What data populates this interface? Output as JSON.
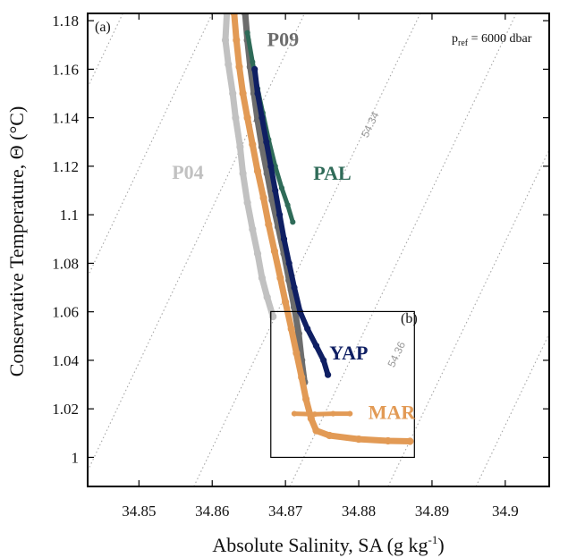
{
  "chart_data": {
    "type": "scatter",
    "panel_tag": "(a)",
    "inset_tag": "(b)",
    "pref": {
      "prefix": "p",
      "subscript": "ref",
      "suffix": " = 6000 dbar"
    },
    "xlabel": {
      "main": "Absolute Salinity, SA (g kg",
      "superscript": "-1",
      "close": ")"
    },
    "ylabel": "Conservative Temperature, Θ (°C)",
    "xlim": [
      34.843,
      34.906
    ],
    "ylim": [
      0.988,
      1.183
    ],
    "xticks": [
      34.85,
      34.86,
      34.87,
      34.88,
      34.89,
      34.9
    ],
    "xtick_labels": [
      "34.85",
      "34.86",
      "34.87",
      "34.88",
      "34.89",
      "34.9"
    ],
    "yticks": [
      1.0,
      1.02,
      1.04,
      1.06,
      1.08,
      1.1,
      1.12,
      1.14,
      1.16,
      1.18
    ],
    "ytick_labels": [
      "1",
      "1.02",
      "1.04",
      "1.06",
      "1.08",
      "1.1",
      "1.12",
      "1.14",
      "1.16",
      "1.18"
    ],
    "grid": false,
    "isopycnals": {
      "style": "dotted",
      "color": "#a6a6a6",
      "lines": [
        {
          "label": "",
          "points": [
            [
              34.843,
              0.9944
            ],
            [
              34.8726,
              1.183
            ]
          ]
        },
        {
          "label": "",
          "points": [
            [
              34.843,
              1.0745
            ],
            [
              34.86,
              1.183
            ]
          ]
        },
        {
          "label": "",
          "points": [
            [
              34.843,
              1.1525
            ],
            [
              34.8478,
              1.183
            ]
          ]
        },
        {
          "label": "54.34",
          "points": [
            [
              34.8575,
              0.988
            ],
            [
              34.8884,
              1.183
            ]
          ],
          "label_at": [
            34.8812,
            1.1315
          ]
        },
        {
          "label": "",
          "points": [
            [
              34.8706,
              0.988
            ],
            [
              34.9015,
              1.183
            ]
          ]
        },
        {
          "label": "54.36",
          "points": [
            [
              34.884,
              0.988
            ],
            [
              34.906,
              1.1268
            ]
          ],
          "label_at": [
            34.8848,
            1.0368
          ]
        },
        {
          "label": "",
          "points": [
            [
              34.896,
              0.988
            ],
            [
              34.906,
              1.051
            ]
          ]
        }
      ]
    },
    "inset_box": {
      "x": [
        34.868,
        34.8876
      ],
      "y": [
        1.0,
        1.0601
      ]
    },
    "series": [
      {
        "name": "P04",
        "color": "#c1c1c1",
        "stroke_width": 7,
        "label_at": [
          34.8545,
          1.1148
        ],
        "points": [
          [
            34.862,
            1.183
          ],
          [
            34.8618,
            1.172
          ],
          [
            34.8622,
            1.162
          ],
          [
            34.8628,
            1.15
          ],
          [
            34.8632,
            1.14
          ],
          [
            34.8638,
            1.128
          ],
          [
            34.8642,
            1.117
          ],
          [
            34.8648,
            1.105
          ],
          [
            34.8655,
            1.094
          ],
          [
            34.8662,
            1.084
          ],
          [
            34.8668,
            1.074
          ],
          [
            34.8675,
            1.066
          ],
          [
            34.8683,
            1.058
          ]
        ]
      },
      {
        "name": "P09",
        "color": "#6d6d6d",
        "stroke_width": 7,
        "label_at": [
          34.8675,
          1.1696
        ],
        "points": [
          [
            34.8645,
            1.183
          ],
          [
            34.8648,
            1.172
          ],
          [
            34.8652,
            1.161
          ],
          [
            34.8657,
            1.15
          ],
          [
            34.8662,
            1.139
          ],
          [
            34.8668,
            1.128
          ],
          [
            34.8675,
            1.117
          ],
          [
            34.8682,
            1.106
          ],
          [
            34.869,
            1.095
          ],
          [
            34.8698,
            1.084
          ],
          [
            34.8705,
            1.073
          ],
          [
            34.8712,
            1.062
          ],
          [
            34.8718,
            1.051
          ],
          [
            34.8722,
            1.04
          ],
          [
            34.8726,
            1.031
          ]
        ]
      },
      {
        "name": "PAL",
        "color": "#2f6b58",
        "stroke_width": 5,
        "label_at": [
          34.8738,
          1.1144
        ],
        "points": [
          [
            34.8648,
            1.175
          ],
          [
            34.8655,
            1.163
          ],
          [
            34.8662,
            1.152
          ],
          [
            34.8669,
            1.142
          ],
          [
            34.8677,
            1.131
          ],
          [
            34.8686,
            1.12
          ],
          [
            34.8695,
            1.111
          ],
          [
            34.8703,
            1.104
          ],
          [
            34.871,
            1.097
          ]
        ]
      },
      {
        "name": "YAP",
        "color": "#0f1f63",
        "stroke_width": 6,
        "label_at": [
          34.876,
          1.0403
        ],
        "points": [
          [
            34.8658,
            1.16
          ],
          [
            34.8662,
            1.15
          ],
          [
            34.8668,
            1.14
          ],
          [
            34.8674,
            1.13
          ],
          [
            34.868,
            1.12
          ],
          [
            34.8686,
            1.11
          ],
          [
            34.8692,
            1.1
          ],
          [
            34.8698,
            1.09
          ],
          [
            34.8705,
            1.08
          ],
          [
            34.8712,
            1.07
          ],
          [
            34.872,
            1.06
          ],
          [
            34.873,
            1.053
          ],
          [
            34.8742,
            1.046
          ],
          [
            34.8752,
            1.04
          ],
          [
            34.8758,
            1.034
          ]
        ]
      },
      {
        "name": "MAR",
        "color": "#e29a55",
        "stroke_width": 7,
        "label_at": [
          34.8813,
          1.0158
        ],
        "points": [
          [
            34.863,
            1.183
          ],
          [
            34.8633,
            1.172
          ],
          [
            34.8637,
            1.161
          ],
          [
            34.8642,
            1.15
          ],
          [
            34.8648,
            1.14
          ],
          [
            34.8655,
            1.129
          ],
          [
            34.8662,
            1.118
          ],
          [
            34.867,
            1.107
          ],
          [
            34.8677,
            1.096
          ],
          [
            34.8685,
            1.085
          ],
          [
            34.8693,
            1.074
          ],
          [
            34.87,
            1.064
          ],
          [
            34.8708,
            1.053
          ],
          [
            34.8715,
            1.043
          ],
          [
            34.8722,
            1.033
          ],
          [
            34.8728,
            1.024
          ],
          [
            34.8735,
            1.016
          ],
          [
            34.8742,
            1.011
          ],
          [
            34.876,
            1.009
          ],
          [
            34.88,
            1.0075
          ],
          [
            34.884,
            1.0068
          ],
          [
            34.887,
            1.0066
          ]
        ]
      },
      {
        "name": "",
        "color": "#e29a55",
        "stroke_width": 5,
        "points": [
          [
            34.8712,
            1.018
          ],
          [
            34.874,
            1.0178
          ],
          [
            34.8765,
            1.018
          ],
          [
            34.8788,
            1.018
          ]
        ]
      }
    ]
  }
}
